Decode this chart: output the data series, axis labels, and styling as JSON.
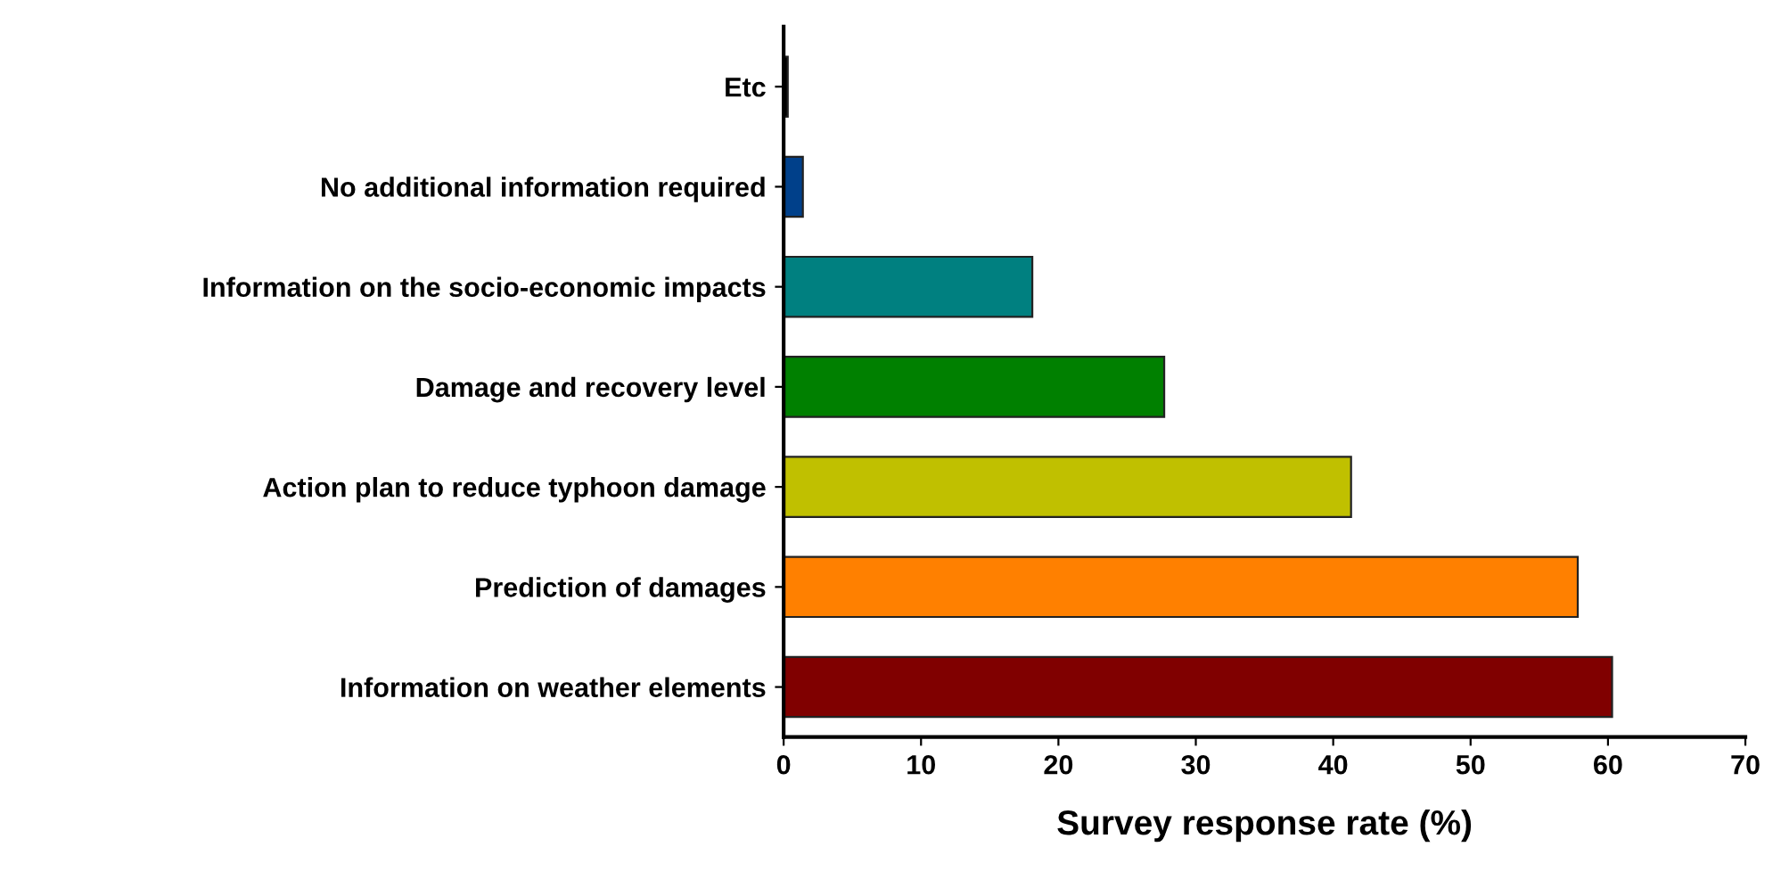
{
  "chart_data": {
    "type": "bar",
    "orientation": "horizontal",
    "xlabel": "Survey response rate (%)",
    "categories": [
      "Etc",
      "No additional information required",
      "Information on the socio-economic impacts",
      "Damage and recovery level",
      "Action plan to reduce typhoon damage",
      "Prediction of damages",
      "Information on weather elements"
    ],
    "values": [
      0.3,
      1.4,
      18.1,
      27.7,
      41.3,
      57.8,
      60.3
    ],
    "colors": [
      "#000000",
      "#00408a",
      "#008080",
      "#008000",
      "#c0c000",
      "#ff8000",
      "#800000"
    ],
    "xlim": [
      0,
      70
    ],
    "xticks": [
      0,
      10,
      20,
      30,
      40,
      50,
      60,
      70
    ],
    "grid": false,
    "legend": false
  }
}
